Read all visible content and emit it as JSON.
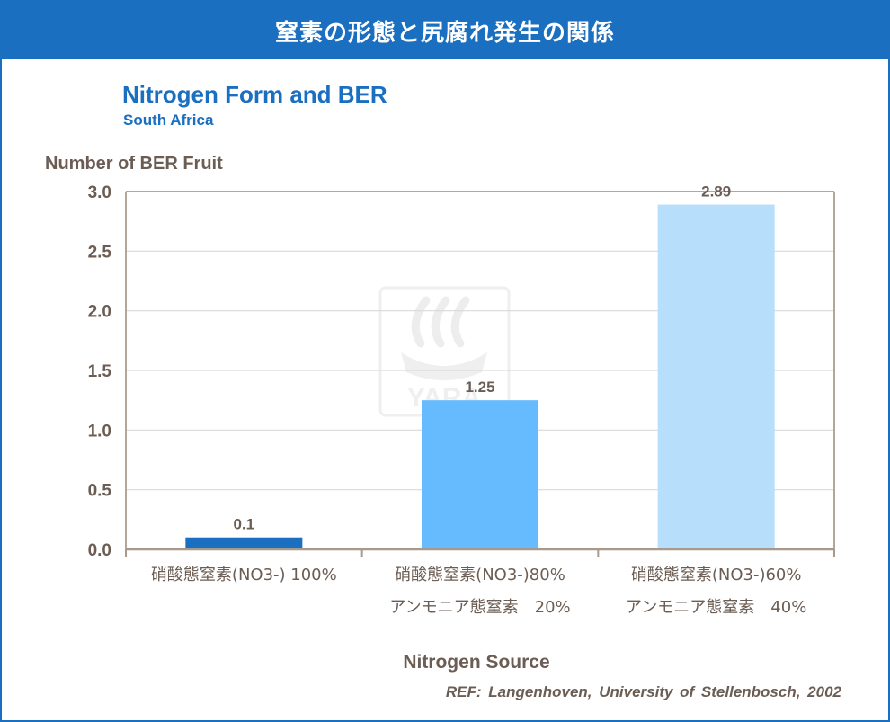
{
  "banner": {
    "title": "窒素の形態と尻腐れ発生の関係"
  },
  "watermark": {
    "text": "YARA"
  },
  "reference": "REF: Langenhoven, University of Stellenbosch, 2002",
  "colors": {
    "banner": "#1a6fc0",
    "title": "#1a6fc0",
    "axis_text": "#6b5d53",
    "bar_colors": [
      "#1a6fc0",
      "#66bbff",
      "#b7defb"
    ]
  },
  "chart_data": {
    "type": "bar",
    "title": "Nitrogen Form and BER",
    "subtitle": "South Africa",
    "ylabel": "Number of BER Fruit",
    "xlabel": "Nitrogen Source",
    "ylim": [
      0,
      3.0
    ],
    "yticks": [
      "0.0",
      "0.5",
      "1.0",
      "1.5",
      "2.0",
      "2.5",
      "3.0"
    ],
    "grid": true,
    "categories": [
      [
        "硝酸態窒素(NO3-) 100%"
      ],
      [
        "硝酸態窒素(NO3-)80%",
        "アンモニア態窒素　20%"
      ],
      [
        "硝酸態窒素(NO3-)60%",
        "アンモニア態窒素　40%"
      ]
    ],
    "values": [
      0.1,
      1.25,
      2.89
    ],
    "value_labels": [
      "0.1",
      "1.25",
      "2.89"
    ]
  }
}
